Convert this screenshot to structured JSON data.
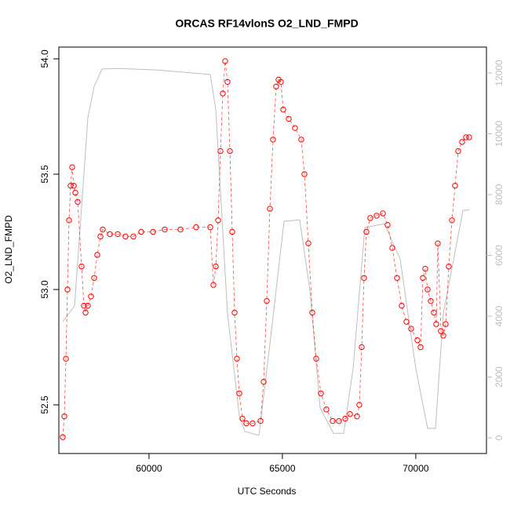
{
  "chart_data": {
    "type": "scatter",
    "title": "ORCAS RF14vlonS O2_LND_FMPD",
    "xlabel": "UTC Seconds",
    "ylabel": "O2_LND_FMPD",
    "xlim": [
      56620,
      72650
    ],
    "xticks": [
      60000,
      65000,
      70000
    ],
    "ylim": [
      52.289,
      54.051
    ],
    "yticks": [
      {
        "value": 54,
        "label": "54.0"
      },
      53.5,
      {
        "value": 53,
        "label": "53.0"
      },
      52.5
    ],
    "y2lim": [
      -516,
      12852
    ],
    "y2ticks": [
      0,
      2000,
      4000,
      6000,
      8000,
      10000,
      12000
    ],
    "series": [
      {
        "type": "scatter",
        "color": "#ff0000",
        "x": [
          56767,
          56826,
          56885,
          56944,
          57002,
          57061,
          57120,
          57179,
          57238,
          57326,
          57473,
          57561,
          57620,
          57708,
          57826,
          57944,
          58061,
          58179,
          58267,
          58532,
          58826,
          59120,
          59414,
          59708,
          60149,
          60590,
          61179,
          61767,
          62296,
          62414,
          62502,
          62590,
          62679,
          62767,
          62855,
          62943,
          63032,
          63120,
          63208,
          63296,
          63385,
          63502,
          63649,
          63885,
          64179,
          64296,
          64414,
          64532,
          64649,
          64767,
          64855,
          64943,
          65032,
          65238,
          65473,
          65708,
          65826,
          65973,
          66120,
          66267,
          66443,
          66649,
          66885,
          67120,
          67355,
          67532,
          67796,
          67885,
          67973,
          68061,
          68149,
          68296,
          68532,
          68767,
          68943,
          69120,
          69296,
          69473,
          69649,
          69826,
          70061,
          70179,
          70267,
          70355,
          70443,
          70561,
          70679,
          70767,
          70826,
          70943,
          71032,
          71120,
          71238,
          71355,
          71473,
          71590,
          71738,
          71885,
          72002
        ],
        "values": [
          52.36,
          52.45,
          52.7,
          53.0,
          53.3,
          53.45,
          53.53,
          53.45,
          53.42,
          53.38,
          53.1,
          52.93,
          52.9,
          52.93,
          52.97,
          53.05,
          53.15,
          53.23,
          53.26,
          53.24,
          53.24,
          53.23,
          53.23,
          53.25,
          53.25,
          53.26,
          53.26,
          53.27,
          53.27,
          53.02,
          53.1,
          53.3,
          53.6,
          53.85,
          53.99,
          53.9,
          53.6,
          53.25,
          52.9,
          52.7,
          52.55,
          52.44,
          52.42,
          52.42,
          52.43,
          52.6,
          52.95,
          53.35,
          53.65,
          53.88,
          53.91,
          53.9,
          53.78,
          53.74,
          53.7,
          53.65,
          53.5,
          53.2,
          52.9,
          52.7,
          52.55,
          52.48,
          52.43,
          52.43,
          52.44,
          52.46,
          52.45,
          52.5,
          52.75,
          53.05,
          53.25,
          53.31,
          53.32,
          53.33,
          53.28,
          53.18,
          53.05,
          52.93,
          52.86,
          52.83,
          52.78,
          52.75,
          53.05,
          53.09,
          53.0,
          52.95,
          52.9,
          52.85,
          53.2,
          52.82,
          52.8,
          52.85,
          53.1,
          53.3,
          53.45,
          53.6,
          53.64,
          53.66,
          53.66
        ]
      },
      {
        "type": "line",
        "axis": "y2",
        "color": "#bebebe",
        "x": [
          56767,
          57208,
          57502,
          57708,
          57944,
          58238,
          58826,
          60296,
          62296,
          62502,
          62943,
          63385,
          63590,
          64120,
          64561,
          65061,
          65649,
          66032,
          66414,
          66914,
          67296,
          67649,
          68090,
          68826,
          69414,
          70002,
          70443,
          70737,
          71032,
          71767,
          72002
        ],
        "values": [
          3820,
          4335,
          7950,
          10530,
          11560,
          12130,
          12150,
          12100,
          11950,
          10800,
          4080,
          730,
          210,
          80,
          3300,
          7120,
          7170,
          4850,
          980,
          150,
          150,
          2270,
          6920,
          7040,
          5880,
          2270,
          310,
          310,
          4080,
          7480,
          7500
        ]
      }
    ]
  }
}
